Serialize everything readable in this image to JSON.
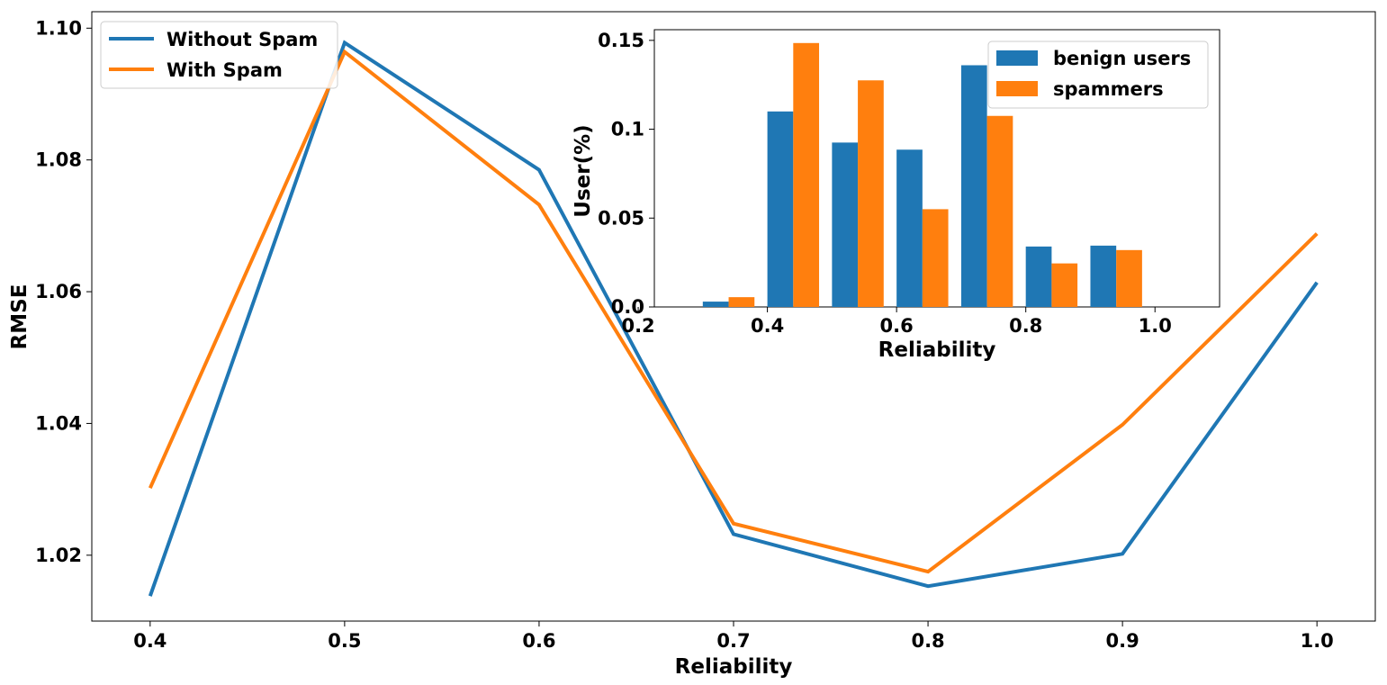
{
  "chart_data": [
    {
      "type": "line",
      "title": "",
      "xlabel": "Reliability",
      "ylabel": "RMSE",
      "x": [
        0.4,
        0.5,
        0.6,
        0.7,
        0.8,
        0.9,
        1.0
      ],
      "xticks": [
        "0.4",
        "0.5",
        "0.6",
        "0.7",
        "0.8",
        "0.9",
        "1.0"
      ],
      "yticks": [
        "1.02",
        "1.04",
        "1.06",
        "1.08",
        "1.10"
      ],
      "xlim": [
        0.37,
        1.03
      ],
      "ylim": [
        1.01,
        1.1025
      ],
      "legend_position": "upper-left",
      "series": [
        {
          "name": "Without Spam",
          "color": "#1f77b4",
          "values": [
            1.0138,
            1.0978,
            1.0785,
            1.0232,
            1.0153,
            1.0202,
            1.0614
          ]
        },
        {
          "name": "With Spam",
          "color": "#ff7f0e",
          "values": [
            1.0302,
            1.0964,
            1.0732,
            1.0248,
            1.0175,
            1.0398,
            1.0688
          ]
        }
      ]
    },
    {
      "type": "bar",
      "title": "",
      "xlabel": "Reliability",
      "ylabel": "User(%)",
      "bins": [
        0.3,
        0.4,
        0.5,
        0.6,
        0.7,
        0.8,
        0.9
      ],
      "xticks": [
        "0.2",
        "0.4",
        "0.6",
        "0.8",
        "1.0"
      ],
      "yticks": [
        "0.0",
        "0.05",
        "0.1",
        "0.15"
      ],
      "xlim": [
        0.225,
        1.1
      ],
      "ylim": [
        0,
        0.156
      ],
      "legend_position": "upper-right",
      "series": [
        {
          "name": "benign users",
          "color": "#1f77b4",
          "values": [
            0.003,
            0.11,
            0.0925,
            0.0885,
            0.136,
            0.034,
            0.0345
          ]
        },
        {
          "name": "spammers",
          "color": "#ff7f0e",
          "values": [
            0.0055,
            0.1485,
            0.1275,
            0.055,
            0.1075,
            0.0245,
            0.032
          ]
        }
      ]
    }
  ]
}
